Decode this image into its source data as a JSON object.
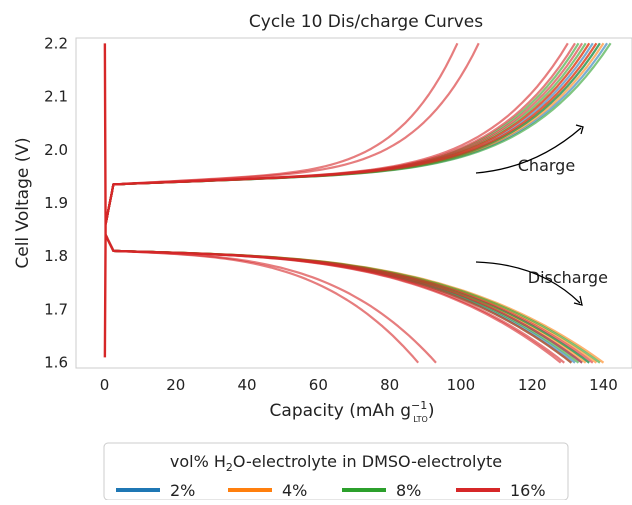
{
  "chart_data": {
    "type": "line",
    "title": "Cycle 10 Dis/charge Curves",
    "xlabel": {
      "main": "Capacity (mAh g",
      "sup": "−1",
      "sub": "LTO",
      "close": ")"
    },
    "ylabel": "Cell Voltage (V)",
    "xlim": [
      -8,
      148
    ],
    "ylim": [
      1.59,
      2.21
    ],
    "xticks": [
      0,
      20,
      40,
      60,
      80,
      100,
      120,
      140
    ],
    "yticks": [
      1.6,
      1.7,
      1.8,
      1.9,
      2.0,
      2.1,
      2.2
    ],
    "grid": false,
    "annotations": [
      {
        "text": "Charge",
        "x": 124,
        "y": 1.96
      },
      {
        "text": "Discharge",
        "x": 130,
        "y": 1.75
      }
    ],
    "legend": {
      "placement": "bottom",
      "title": {
        "pre": "vol% H",
        "sub": "2",
        "post": "O-electrolyte in DMSO-electrolyte"
      },
      "entries": [
        {
          "label": "2%",
          "color": "#1f77b4"
        },
        {
          "label": "4%",
          "color": "#ff7f0e"
        },
        {
          "label": "8%",
          "color": "#2ca02c"
        },
        {
          "label": "16%",
          "color": "#d62728"
        }
      ]
    },
    "series": [
      {
        "group": "2%",
        "color": "#1f77b4",
        "charge_end_capacity": 141,
        "discharge_end_capacity": 136
      },
      {
        "group": "2%",
        "color": "#1f77b4",
        "charge_end_capacity": 139,
        "discharge_end_capacity": 134
      },
      {
        "group": "2%",
        "color": "#1f77b4",
        "charge_end_capacity": 137,
        "discharge_end_capacity": 132
      },
      {
        "group": "4%",
        "color": "#ff7f0e",
        "charge_end_capacity": 140,
        "discharge_end_capacity": 140
      },
      {
        "group": "4%",
        "color": "#ff7f0e",
        "charge_end_capacity": 138,
        "discharge_end_capacity": 138
      },
      {
        "group": "4%",
        "color": "#ff7f0e",
        "charge_end_capacity": 136,
        "discharge_end_capacity": 135
      },
      {
        "group": "8%",
        "color": "#2ca02c",
        "charge_end_capacity": 142,
        "discharge_end_capacity": 139
      },
      {
        "group": "8%",
        "color": "#2ca02c",
        "charge_end_capacity": 139,
        "discharge_end_capacity": 136
      },
      {
        "group": "8%",
        "color": "#2ca02c",
        "charge_end_capacity": 135,
        "discharge_end_capacity": 133
      },
      {
        "group": "8%",
        "color": "#2ca02c",
        "charge_end_capacity": 133,
        "discharge_end_capacity": 131
      },
      {
        "group": "16%",
        "color": "#d62728",
        "charge_end_capacity": 138,
        "discharge_end_capacity": 137
      },
      {
        "group": "16%",
        "color": "#d62728",
        "charge_end_capacity": 136,
        "discharge_end_capacity": 134
      },
      {
        "group": "16%",
        "color": "#d62728",
        "charge_end_capacity": 134,
        "discharge_end_capacity": 131
      },
      {
        "group": "16%",
        "color": "#d62728",
        "charge_end_capacity": 132,
        "discharge_end_capacity": 129
      },
      {
        "group": "16%",
        "color": "#d62728",
        "charge_end_capacity": 130,
        "discharge_end_capacity": 128
      },
      {
        "group": "16%",
        "color": "#d62728",
        "charge_end_capacity": 105,
        "discharge_end_capacity": 93
      },
      {
        "group": "16%",
        "color": "#d62728",
        "charge_end_capacity": 99,
        "discharge_end_capacity": 88
      }
    ]
  }
}
